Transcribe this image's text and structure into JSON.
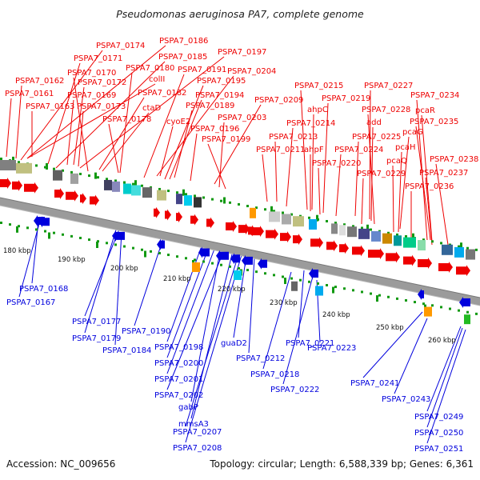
{
  "title": "Pseudomonas aeruginosa PA7, complete genome",
  "accession_text": "Accession: NC_009656",
  "summary_text": "Topology: circular; Length: 6,588,339 bp; Genes: 6,361",
  "colors": {
    "forward": "#ee0000",
    "reverse": "#0000dd",
    "backbone": "#999999",
    "ticks": "#119911"
  },
  "kbp_labels": [
    "180 kbp",
    "190 kbp",
    "200 kbp",
    "210 kbp",
    "220 kbp",
    "230 kbp",
    "240 kbp",
    "250 kbp",
    "260 kbp"
  ],
  "forward_labels": [
    "PSPA7_0174",
    "PSPA7_0186",
    "PSPA7_0171",
    "PSPA7_0185",
    "PSPA7_0197",
    "PSPA7_0170",
    "PSPA7_0180",
    "PSPA7_0191",
    "PSPA7_0204",
    "PSPA7_0162",
    "colII",
    "PSPA7_0172",
    "PSPA7_0195",
    "PSPA7_0161",
    "PSPA7_0169",
    "PSPA7_0182",
    "PSPA7_0194",
    "PSPA7_0209",
    "PSPA7_0163",
    "PSPA7_0173",
    "ctaD",
    "PSPA7_0189",
    "PSPA7_0178",
    "cyoE2",
    "PSPA7_0203",
    "PSPA7_0196",
    "PSPA7_0199",
    "PSPA7_0215",
    "PSPA7_0227",
    "ahpC",
    "PSPA7_0219",
    "PSPA7_0234",
    "PSPA7_0228",
    "pcaR",
    "add",
    "PSPA7_0214",
    "PSPA7_0235",
    "PSPA7_0213",
    "PSPA7_0225",
    "pcaG",
    "pcaH",
    "PSPA7_0211",
    "ahpF",
    "PSPA7_0224",
    "pcaQ",
    "PSPA7_0220",
    "PSPA7_0238",
    "PSPA7_0229",
    "PSPA7_0237",
    "PSPA7_0236"
  ],
  "reverse_labels": [
    "PSPA7_0168",
    "PSPA7_0167",
    "PSPA7_0177",
    "PSPA7_0179",
    "PSPA7_0190",
    "PSPA7_0184",
    "PSPA7_0198",
    "PSPA7_0200",
    "PSPA7_0201",
    "PSPA7_0202",
    "gabP",
    "mmsA3",
    "PSPA7_0207",
    "PSPA7_0208",
    "guaD2",
    "PSPA7_0212",
    "PSPA7_0221",
    "PSPA7_0218",
    "PSPA7_0222",
    "PSPA7_0223",
    "PSPA7_0241",
    "PSPA7_0243",
    "PSPA7_0249",
    "PSPA7_0250",
    "PSPA7_0251"
  ]
}
